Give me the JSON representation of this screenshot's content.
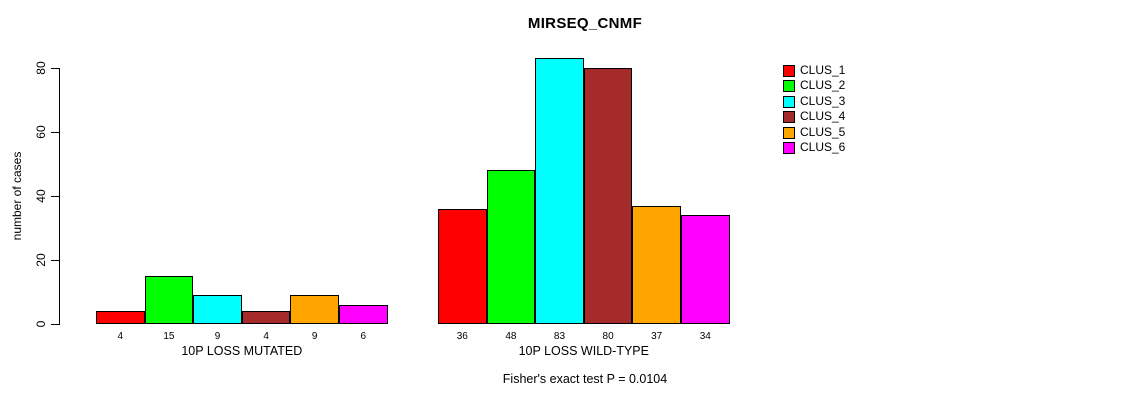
{
  "chart_data": {
    "type": "bar",
    "title": "MIRSEQ_CNMF",
    "ylabel": "number of cases",
    "xlabel": "",
    "ylim": [
      0,
      80
    ],
    "yticks": [
      0,
      20,
      40,
      60,
      80
    ],
    "grid": false,
    "legend_position": "right",
    "categories": [
      "10P LOSS MUTATED",
      "10P LOSS WILD-TYPE"
    ],
    "series": [
      {
        "name": "CLUS_1",
        "color": "#ff0000",
        "values": [
          4,
          36
        ]
      },
      {
        "name": "CLUS_2",
        "color": "#00ff00",
        "values": [
          15,
          48
        ]
      },
      {
        "name": "CLUS_3",
        "color": "#00ffff",
        "values": [
          9,
          83
        ]
      },
      {
        "name": "CLUS_4",
        "color": "#a52a2a",
        "values": [
          4,
          80
        ]
      },
      {
        "name": "CLUS_5",
        "color": "#ffa500",
        "values": [
          9,
          37
        ]
      },
      {
        "name": "CLUS_6",
        "color": "#ff00ff",
        "values": [
          6,
          34
        ]
      }
    ],
    "bar_value_labels": {
      "10P LOSS MUTATED": [
        4,
        15,
        9,
        4,
        9,
        6
      ],
      "10P LOSS WILD-TYPE": [
        36,
        48,
        83,
        80,
        37,
        34
      ]
    },
    "annotation": "Fisher's exact test P = 0.0104"
  }
}
